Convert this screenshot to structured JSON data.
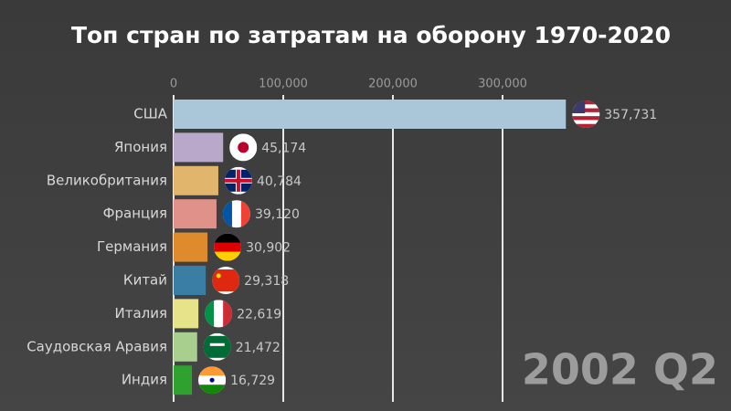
{
  "chart_data": {
    "type": "bar",
    "orientation": "horizontal",
    "title": "Топ стран по затратам на оборону 1970-2020",
    "period": "2002 Q2",
    "categories": [
      "США",
      "Япония",
      "Великобритания",
      "Франция",
      "Германия",
      "Китай",
      "Италия",
      "Саудовская Аравия",
      "Индия"
    ],
    "values": [
      357731,
      45174,
      40784,
      39120,
      30902,
      29318,
      22619,
      21472,
      16729
    ],
    "value_labels": [
      "357,731",
      "45,174",
      "40,784",
      "39,120",
      "30,902",
      "29,318",
      "22,619",
      "21,472",
      "16,729"
    ],
    "colors": [
      "#a9c7d8",
      "#b9a8c9",
      "#e1b56c",
      "#df918a",
      "#df8a2d",
      "#3a7ea5",
      "#e7e38b",
      "#a8cf8d",
      "#2ea12f"
    ],
    "xlim": [
      0,
      500000
    ],
    "xticks": [
      0,
      {
        "value": 100000,
        "label": "100,000"
      },
      {
        "value": 200000,
        "label": "200,000"
      },
      {
        "value": 300000,
        "label": "300,000"
      }
    ],
    "grid": true
  }
}
